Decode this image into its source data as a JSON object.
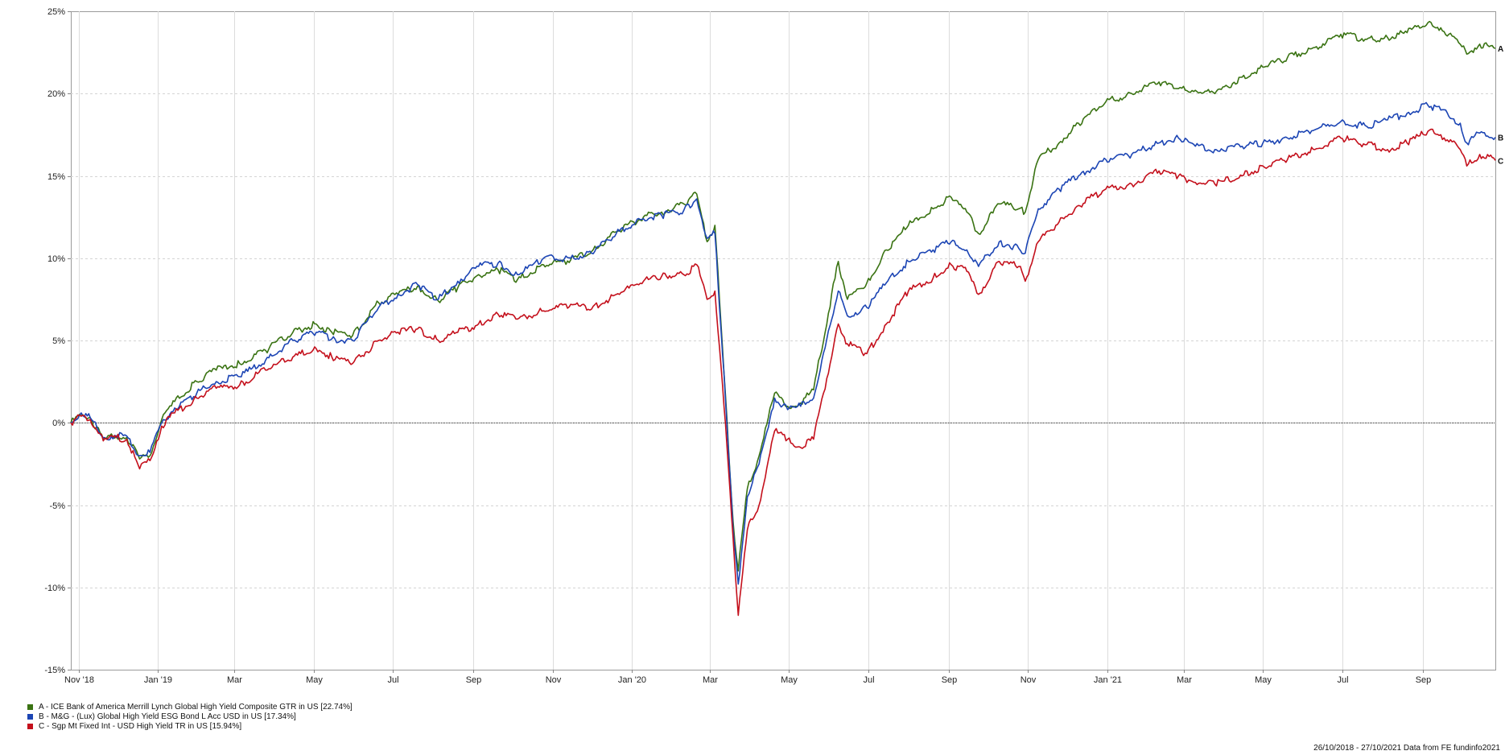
{
  "chart_data": {
    "type": "line",
    "y_unit": "%",
    "ylim": [
      -15,
      25
    ],
    "y_ticks": [
      25,
      20,
      15,
      10,
      5,
      0,
      -5,
      -10,
      -15
    ],
    "y_tick_labels": [
      "25%",
      "20%",
      "15%",
      "10%",
      "5%",
      "0%",
      "-5%",
      "-10%",
      "-15%"
    ],
    "x_range": [
      "2018-10-26",
      "2021-10-27"
    ],
    "x_ticks": [
      {
        "date": "2018-11-01",
        "label": "Nov '18"
      },
      {
        "date": "2019-01-01",
        "label": "Jan '19"
      },
      {
        "date": "2019-03-01",
        "label": "Mar"
      },
      {
        "date": "2019-05-01",
        "label": "May"
      },
      {
        "date": "2019-07-01",
        "label": "Jul"
      },
      {
        "date": "2019-09-01",
        "label": "Sep"
      },
      {
        "date": "2019-11-01",
        "label": "Nov"
      },
      {
        "date": "2020-01-01",
        "label": "Jan '20"
      },
      {
        "date": "2020-03-01",
        "label": "Mar"
      },
      {
        "date": "2020-05-01",
        "label": "May"
      },
      {
        "date": "2020-07-01",
        "label": "Jul"
      },
      {
        "date": "2020-09-01",
        "label": "Sep"
      },
      {
        "date": "2020-11-01",
        "label": "Nov"
      },
      {
        "date": "2021-01-01",
        "label": "Jan '21"
      },
      {
        "date": "2021-03-01",
        "label": "Mar"
      },
      {
        "date": "2021-05-01",
        "label": "May"
      },
      {
        "date": "2021-07-01",
        "label": "Jul"
      },
      {
        "date": "2021-09-01",
        "label": "Sep"
      }
    ],
    "grid": true,
    "zero_line": true,
    "legend_position": "bottom-left",
    "series": [
      {
        "id": "A",
        "name": "A - ICE Bank of America Merrill Lynch Global High Yield Composite GTR in US [22.74%]",
        "end_label": "A",
        "color": "#3a7313",
        "points": [
          [
            "2018-10-26",
            0.0
          ],
          [
            "2018-11-03",
            0.5
          ],
          [
            "2018-11-10",
            0.3
          ],
          [
            "2018-11-20",
            -1.0
          ],
          [
            "2018-11-30",
            -0.8
          ],
          [
            "2018-12-08",
            -0.9
          ],
          [
            "2018-12-18",
            -2.2
          ],
          [
            "2018-12-26",
            -2.0
          ],
          [
            "2019-01-04",
            0.2
          ],
          [
            "2019-01-14",
            1.3
          ],
          [
            "2019-01-31",
            2.5
          ],
          [
            "2019-02-15",
            3.2
          ],
          [
            "2019-03-05",
            3.6
          ],
          [
            "2019-03-25",
            4.4
          ],
          [
            "2019-04-15",
            5.5
          ],
          [
            "2019-05-03",
            6.0
          ],
          [
            "2019-05-15",
            5.5
          ],
          [
            "2019-05-31",
            5.3
          ],
          [
            "2019-06-20",
            7.3
          ],
          [
            "2019-07-05",
            7.8
          ],
          [
            "2019-07-20",
            8.3
          ],
          [
            "2019-08-05",
            7.4
          ],
          [
            "2019-08-20",
            8.2
          ],
          [
            "2019-09-05",
            9.0
          ],
          [
            "2019-09-20",
            9.3
          ],
          [
            "2019-10-05",
            8.7
          ],
          [
            "2019-10-25",
            9.6
          ],
          [
            "2019-11-15",
            9.9
          ],
          [
            "2019-12-01",
            10.4
          ],
          [
            "2019-12-20",
            11.6
          ],
          [
            "2020-01-10",
            12.5
          ],
          [
            "2020-01-24",
            12.8
          ],
          [
            "2020-02-10",
            13.3
          ],
          [
            "2020-02-20",
            13.9
          ],
          [
            "2020-02-28",
            11.0
          ],
          [
            "2020-03-05",
            12.0
          ],
          [
            "2020-03-12",
            3.0
          ],
          [
            "2020-03-19",
            -6.0
          ],
          [
            "2020-03-23",
            -9.0
          ],
          [
            "2020-03-30",
            -4.0
          ],
          [
            "2020-04-08",
            -2.0
          ],
          [
            "2020-04-20",
            1.8
          ],
          [
            "2020-04-30",
            1.0
          ],
          [
            "2020-05-10",
            1.2
          ],
          [
            "2020-05-20",
            2.0
          ],
          [
            "2020-06-08",
            9.8
          ],
          [
            "2020-06-15",
            7.5
          ],
          [
            "2020-06-30",
            8.5
          ],
          [
            "2020-07-15",
            10.5
          ],
          [
            "2020-08-01",
            12.0
          ],
          [
            "2020-08-20",
            13.0
          ],
          [
            "2020-09-03",
            13.7
          ],
          [
            "2020-09-15",
            12.8
          ],
          [
            "2020-09-24",
            11.5
          ],
          [
            "2020-10-10",
            13.3
          ],
          [
            "2020-10-25",
            13.0
          ],
          [
            "2020-10-30",
            12.8
          ],
          [
            "2020-11-09",
            16.0
          ],
          [
            "2020-11-25",
            17.0
          ],
          [
            "2020-12-10",
            18.2
          ],
          [
            "2020-12-31",
            19.5
          ],
          [
            "2021-01-20",
            20.0
          ],
          [
            "2021-02-10",
            20.7
          ],
          [
            "2021-02-25",
            20.3
          ],
          [
            "2021-03-10",
            20.2
          ],
          [
            "2021-03-25",
            20.0
          ],
          [
            "2021-04-15",
            21.0
          ],
          [
            "2021-05-01",
            21.6
          ],
          [
            "2021-05-20",
            22.2
          ],
          [
            "2021-06-10",
            22.8
          ],
          [
            "2021-06-30",
            23.6
          ],
          [
            "2021-07-20",
            23.3
          ],
          [
            "2021-08-05",
            23.4
          ],
          [
            "2021-08-20",
            23.7
          ],
          [
            "2021-09-05",
            24.3
          ],
          [
            "2021-09-15",
            24.0
          ],
          [
            "2021-09-30",
            23.0
          ],
          [
            "2021-10-05",
            22.4
          ],
          [
            "2021-10-15",
            23.0
          ],
          [
            "2021-10-27",
            22.74
          ]
        ]
      },
      {
        "id": "B",
        "name": "B - M&G - (Lux) Global High Yield ESG Bond L Acc USD in US [17.34%]",
        "end_label": "B",
        "color": "#1c45b4",
        "points": [
          [
            "2018-10-26",
            0.0
          ],
          [
            "2018-11-03",
            0.6
          ],
          [
            "2018-11-10",
            0.3
          ],
          [
            "2018-11-20",
            -0.9
          ],
          [
            "2018-11-30",
            -0.8
          ],
          [
            "2018-12-08",
            -0.8
          ],
          [
            "2018-12-18",
            -2.0
          ],
          [
            "2018-12-26",
            -1.8
          ],
          [
            "2019-01-04",
            0.0
          ],
          [
            "2019-01-14",
            0.9
          ],
          [
            "2019-01-31",
            1.8
          ],
          [
            "2019-02-15",
            2.5
          ],
          [
            "2019-03-05",
            2.8
          ],
          [
            "2019-03-25",
            3.8
          ],
          [
            "2019-04-15",
            5.0
          ],
          [
            "2019-05-03",
            5.5
          ],
          [
            "2019-05-15",
            5.1
          ],
          [
            "2019-05-31",
            5.0
          ],
          [
            "2019-06-20",
            7.0
          ],
          [
            "2019-07-05",
            7.8
          ],
          [
            "2019-07-20",
            8.4
          ],
          [
            "2019-08-05",
            7.5
          ],
          [
            "2019-08-20",
            8.6
          ],
          [
            "2019-09-05",
            9.5
          ],
          [
            "2019-09-20",
            9.7
          ],
          [
            "2019-10-05",
            9.0
          ],
          [
            "2019-10-25",
            10.0
          ],
          [
            "2019-11-15",
            10.0
          ],
          [
            "2019-12-01",
            10.3
          ],
          [
            "2019-12-20",
            11.5
          ],
          [
            "2020-01-10",
            12.4
          ],
          [
            "2020-01-24",
            12.6
          ],
          [
            "2020-02-10",
            12.9
          ],
          [
            "2020-02-20",
            13.6
          ],
          [
            "2020-02-28",
            11.2
          ],
          [
            "2020-03-05",
            11.5
          ],
          [
            "2020-03-12",
            3.0
          ],
          [
            "2020-03-19",
            -6.5
          ],
          [
            "2020-03-23",
            -9.8
          ],
          [
            "2020-03-30",
            -4.5
          ],
          [
            "2020-04-08",
            -2.5
          ],
          [
            "2020-04-20",
            1.5
          ],
          [
            "2020-04-30",
            0.8
          ],
          [
            "2020-05-10",
            1.0
          ],
          [
            "2020-05-20",
            1.5
          ],
          [
            "2020-06-08",
            8.0
          ],
          [
            "2020-06-15",
            6.5
          ],
          [
            "2020-06-30",
            7.0
          ],
          [
            "2020-07-15",
            8.5
          ],
          [
            "2020-08-01",
            9.8
          ],
          [
            "2020-08-20",
            10.5
          ],
          [
            "2020-09-03",
            11.0
          ],
          [
            "2020-09-15",
            10.5
          ],
          [
            "2020-09-24",
            9.5
          ],
          [
            "2020-10-10",
            11.0
          ],
          [
            "2020-10-25",
            10.6
          ],
          [
            "2020-10-30",
            10.3
          ],
          [
            "2020-11-09",
            13.0
          ],
          [
            "2020-11-25",
            14.2
          ],
          [
            "2020-12-10",
            15.0
          ],
          [
            "2020-12-31",
            16.0
          ],
          [
            "2021-01-20",
            16.3
          ],
          [
            "2021-02-10",
            17.0
          ],
          [
            "2021-02-25",
            17.3
          ],
          [
            "2021-03-10",
            16.8
          ],
          [
            "2021-03-25",
            16.6
          ],
          [
            "2021-04-15",
            16.8
          ],
          [
            "2021-05-01",
            17.0
          ],
          [
            "2021-05-20",
            17.3
          ],
          [
            "2021-06-10",
            17.8
          ],
          [
            "2021-06-30",
            18.3
          ],
          [
            "2021-07-20",
            18.0
          ],
          [
            "2021-08-05",
            18.4
          ],
          [
            "2021-08-20",
            18.8
          ],
          [
            "2021-09-05",
            19.3
          ],
          [
            "2021-09-15",
            19.0
          ],
          [
            "2021-09-30",
            18.2
          ],
          [
            "2021-10-05",
            17.0
          ],
          [
            "2021-10-15",
            17.6
          ],
          [
            "2021-10-27",
            17.34
          ]
        ]
      },
      {
        "id": "C",
        "name": "C - Sgp Mt Fixed Int - USD High Yield TR in US [15.94%]",
        "end_label": "C",
        "color": "#c4101c",
        "points": [
          [
            "2018-10-26",
            0.0
          ],
          [
            "2018-11-03",
            0.4
          ],
          [
            "2018-11-10",
            0.2
          ],
          [
            "2018-11-20",
            -1.1
          ],
          [
            "2018-11-30",
            -0.9
          ],
          [
            "2018-12-08",
            -1.0
          ],
          [
            "2018-12-18",
            -2.8
          ],
          [
            "2018-12-26",
            -2.3
          ],
          [
            "2019-01-04",
            -0.2
          ],
          [
            "2019-01-14",
            0.6
          ],
          [
            "2019-01-31",
            1.5
          ],
          [
            "2019-02-15",
            2.1
          ],
          [
            "2019-03-05",
            2.3
          ],
          [
            "2019-03-25",
            3.2
          ],
          [
            "2019-04-15",
            4.0
          ],
          [
            "2019-05-03",
            4.5
          ],
          [
            "2019-05-15",
            4.0
          ],
          [
            "2019-05-31",
            3.6
          ],
          [
            "2019-06-20",
            5.0
          ],
          [
            "2019-07-05",
            5.5
          ],
          [
            "2019-07-20",
            5.7
          ],
          [
            "2019-08-05",
            5.0
          ],
          [
            "2019-08-20",
            5.5
          ],
          [
            "2019-09-05",
            6.0
          ],
          [
            "2019-09-20",
            6.6
          ],
          [
            "2019-10-05",
            6.3
          ],
          [
            "2019-10-25",
            6.8
          ],
          [
            "2019-11-15",
            7.2
          ],
          [
            "2019-12-01",
            6.9
          ],
          [
            "2019-12-20",
            7.8
          ],
          [
            "2020-01-10",
            8.6
          ],
          [
            "2020-01-24",
            8.9
          ],
          [
            "2020-02-10",
            9.0
          ],
          [
            "2020-02-20",
            9.6
          ],
          [
            "2020-02-28",
            7.5
          ],
          [
            "2020-03-05",
            8.0
          ],
          [
            "2020-03-12",
            1.0
          ],
          [
            "2020-03-19",
            -7.0
          ],
          [
            "2020-03-23",
            -11.7
          ],
          [
            "2020-03-30",
            -6.5
          ],
          [
            "2020-04-08",
            -5.0
          ],
          [
            "2020-04-20",
            -0.5
          ],
          [
            "2020-04-30",
            -1.0
          ],
          [
            "2020-05-10",
            -1.5
          ],
          [
            "2020-05-20",
            -1.0
          ],
          [
            "2020-06-08",
            6.0
          ],
          [
            "2020-06-15",
            4.8
          ],
          [
            "2020-06-30",
            4.2
          ],
          [
            "2020-07-15",
            6.0
          ],
          [
            "2020-08-01",
            8.0
          ],
          [
            "2020-08-20",
            8.8
          ],
          [
            "2020-09-03",
            9.6
          ],
          [
            "2020-09-15",
            9.2
          ],
          [
            "2020-09-24",
            7.8
          ],
          [
            "2020-10-10",
            9.8
          ],
          [
            "2020-10-25",
            9.5
          ],
          [
            "2020-10-30",
            8.6
          ],
          [
            "2020-11-09",
            11.0
          ],
          [
            "2020-11-25",
            12.2
          ],
          [
            "2020-12-10",
            13.2
          ],
          [
            "2020-12-31",
            14.2
          ],
          [
            "2021-01-20",
            14.5
          ],
          [
            "2021-02-10",
            15.3
          ],
          [
            "2021-02-25",
            15.0
          ],
          [
            "2021-03-10",
            14.6
          ],
          [
            "2021-03-25",
            14.5
          ],
          [
            "2021-04-15",
            15.0
          ],
          [
            "2021-05-01",
            15.6
          ],
          [
            "2021-05-20",
            16.0
          ],
          [
            "2021-06-10",
            16.6
          ],
          [
            "2021-06-30",
            17.3
          ],
          [
            "2021-07-20",
            16.9
          ],
          [
            "2021-08-05",
            16.6
          ],
          [
            "2021-08-20",
            17.0
          ],
          [
            "2021-09-05",
            17.7
          ],
          [
            "2021-09-15",
            17.5
          ],
          [
            "2021-09-30",
            16.6
          ],
          [
            "2021-10-05",
            15.6
          ],
          [
            "2021-10-15",
            16.3
          ],
          [
            "2021-10-27",
            15.94
          ]
        ]
      }
    ]
  },
  "footer": {
    "text": "26/10/2018 - 27/10/2021 Data from FE fundinfo2021"
  }
}
